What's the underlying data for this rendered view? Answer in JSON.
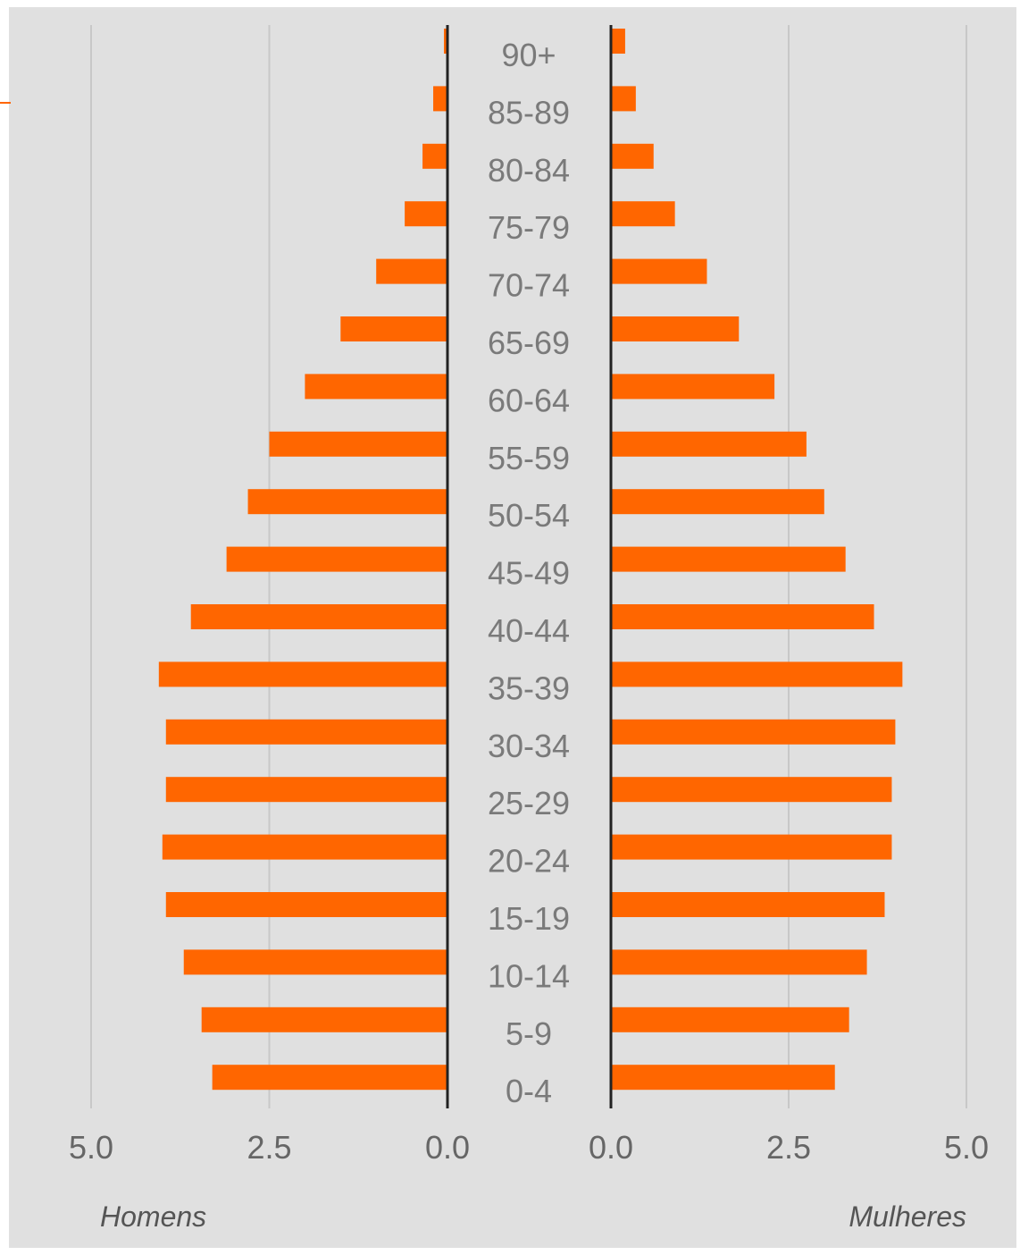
{
  "chart_data": {
    "type": "bar",
    "orientation": "horizontal",
    "layout": "population-pyramid",
    "categories": [
      "90+",
      "85-89",
      "80-84",
      "75-79",
      "70-74",
      "65-69",
      "60-64",
      "55-59",
      "50-54",
      "45-49",
      "40-44",
      "35-39",
      "30-34",
      "25-29",
      "20-24",
      "15-19",
      "10-14",
      "5-9",
      "0-4"
    ],
    "series": [
      {
        "name": "Homens",
        "side": "left",
        "values": [
          0.05,
          0.2,
          0.35,
          0.6,
          1.0,
          1.5,
          2.0,
          2.5,
          2.8,
          3.1,
          3.6,
          4.05,
          3.95,
          3.95,
          4.0,
          3.95,
          3.7,
          3.45,
          3.3
        ]
      },
      {
        "name": "Mulheres",
        "side": "right",
        "values": [
          0.2,
          0.35,
          0.6,
          0.9,
          1.35,
          1.8,
          2.3,
          2.75,
          3.0,
          3.3,
          3.7,
          4.1,
          4.0,
          3.95,
          3.95,
          3.85,
          3.6,
          3.35,
          3.15
        ]
      }
    ],
    "xlim": [
      0,
      5.0
    ],
    "left_ticks": [
      "5.0",
      "2.5",
      "0.0"
    ],
    "right_ticks": [
      "0.0",
      "2.5",
      "5.0"
    ],
    "tick_values_left": [
      5.0,
      2.5,
      0.0
    ],
    "tick_values_right": [
      0.0,
      2.5,
      5.0
    ],
    "grid": true,
    "bar_color": "#ff6600",
    "background_color": "#e0e0e0",
    "left_label": "Homens",
    "right_label": "Mulheres"
  }
}
